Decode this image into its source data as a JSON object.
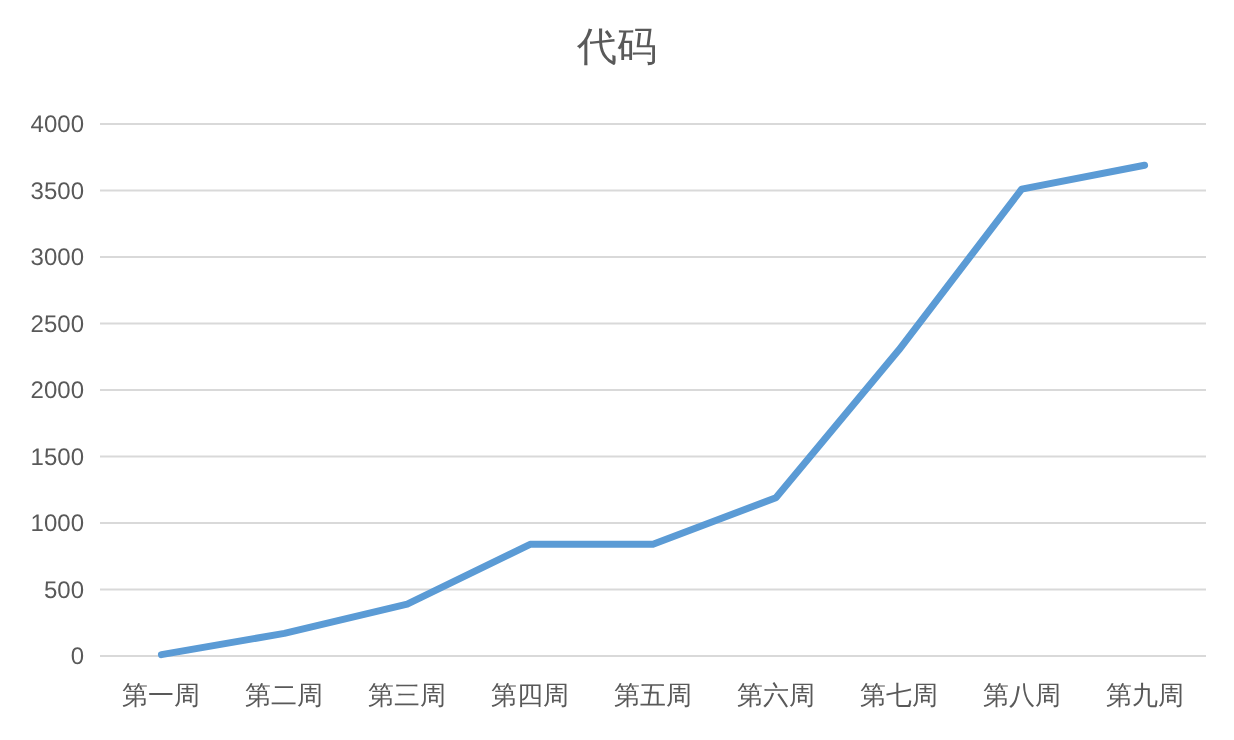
{
  "chart_data": {
    "type": "line",
    "title": "代码",
    "categories": [
      "第一周",
      "第二周",
      "第三周",
      "第四周",
      "第五周",
      "第六周",
      "第七周",
      "第八周",
      "第九周"
    ],
    "series": [
      {
        "color": "#5b9bd5",
        "values": [
          10,
          170,
          390,
          840,
          840,
          1190,
          2300,
          3510,
          3690
        ]
      }
    ],
    "ylim": [
      0,
      4000
    ],
    "yticks": [
      0,
      500,
      1000,
      1500,
      2000,
      2500,
      3000,
      3500,
      4000
    ],
    "grid": "y",
    "marker": "none",
    "line_style": "solid"
  }
}
